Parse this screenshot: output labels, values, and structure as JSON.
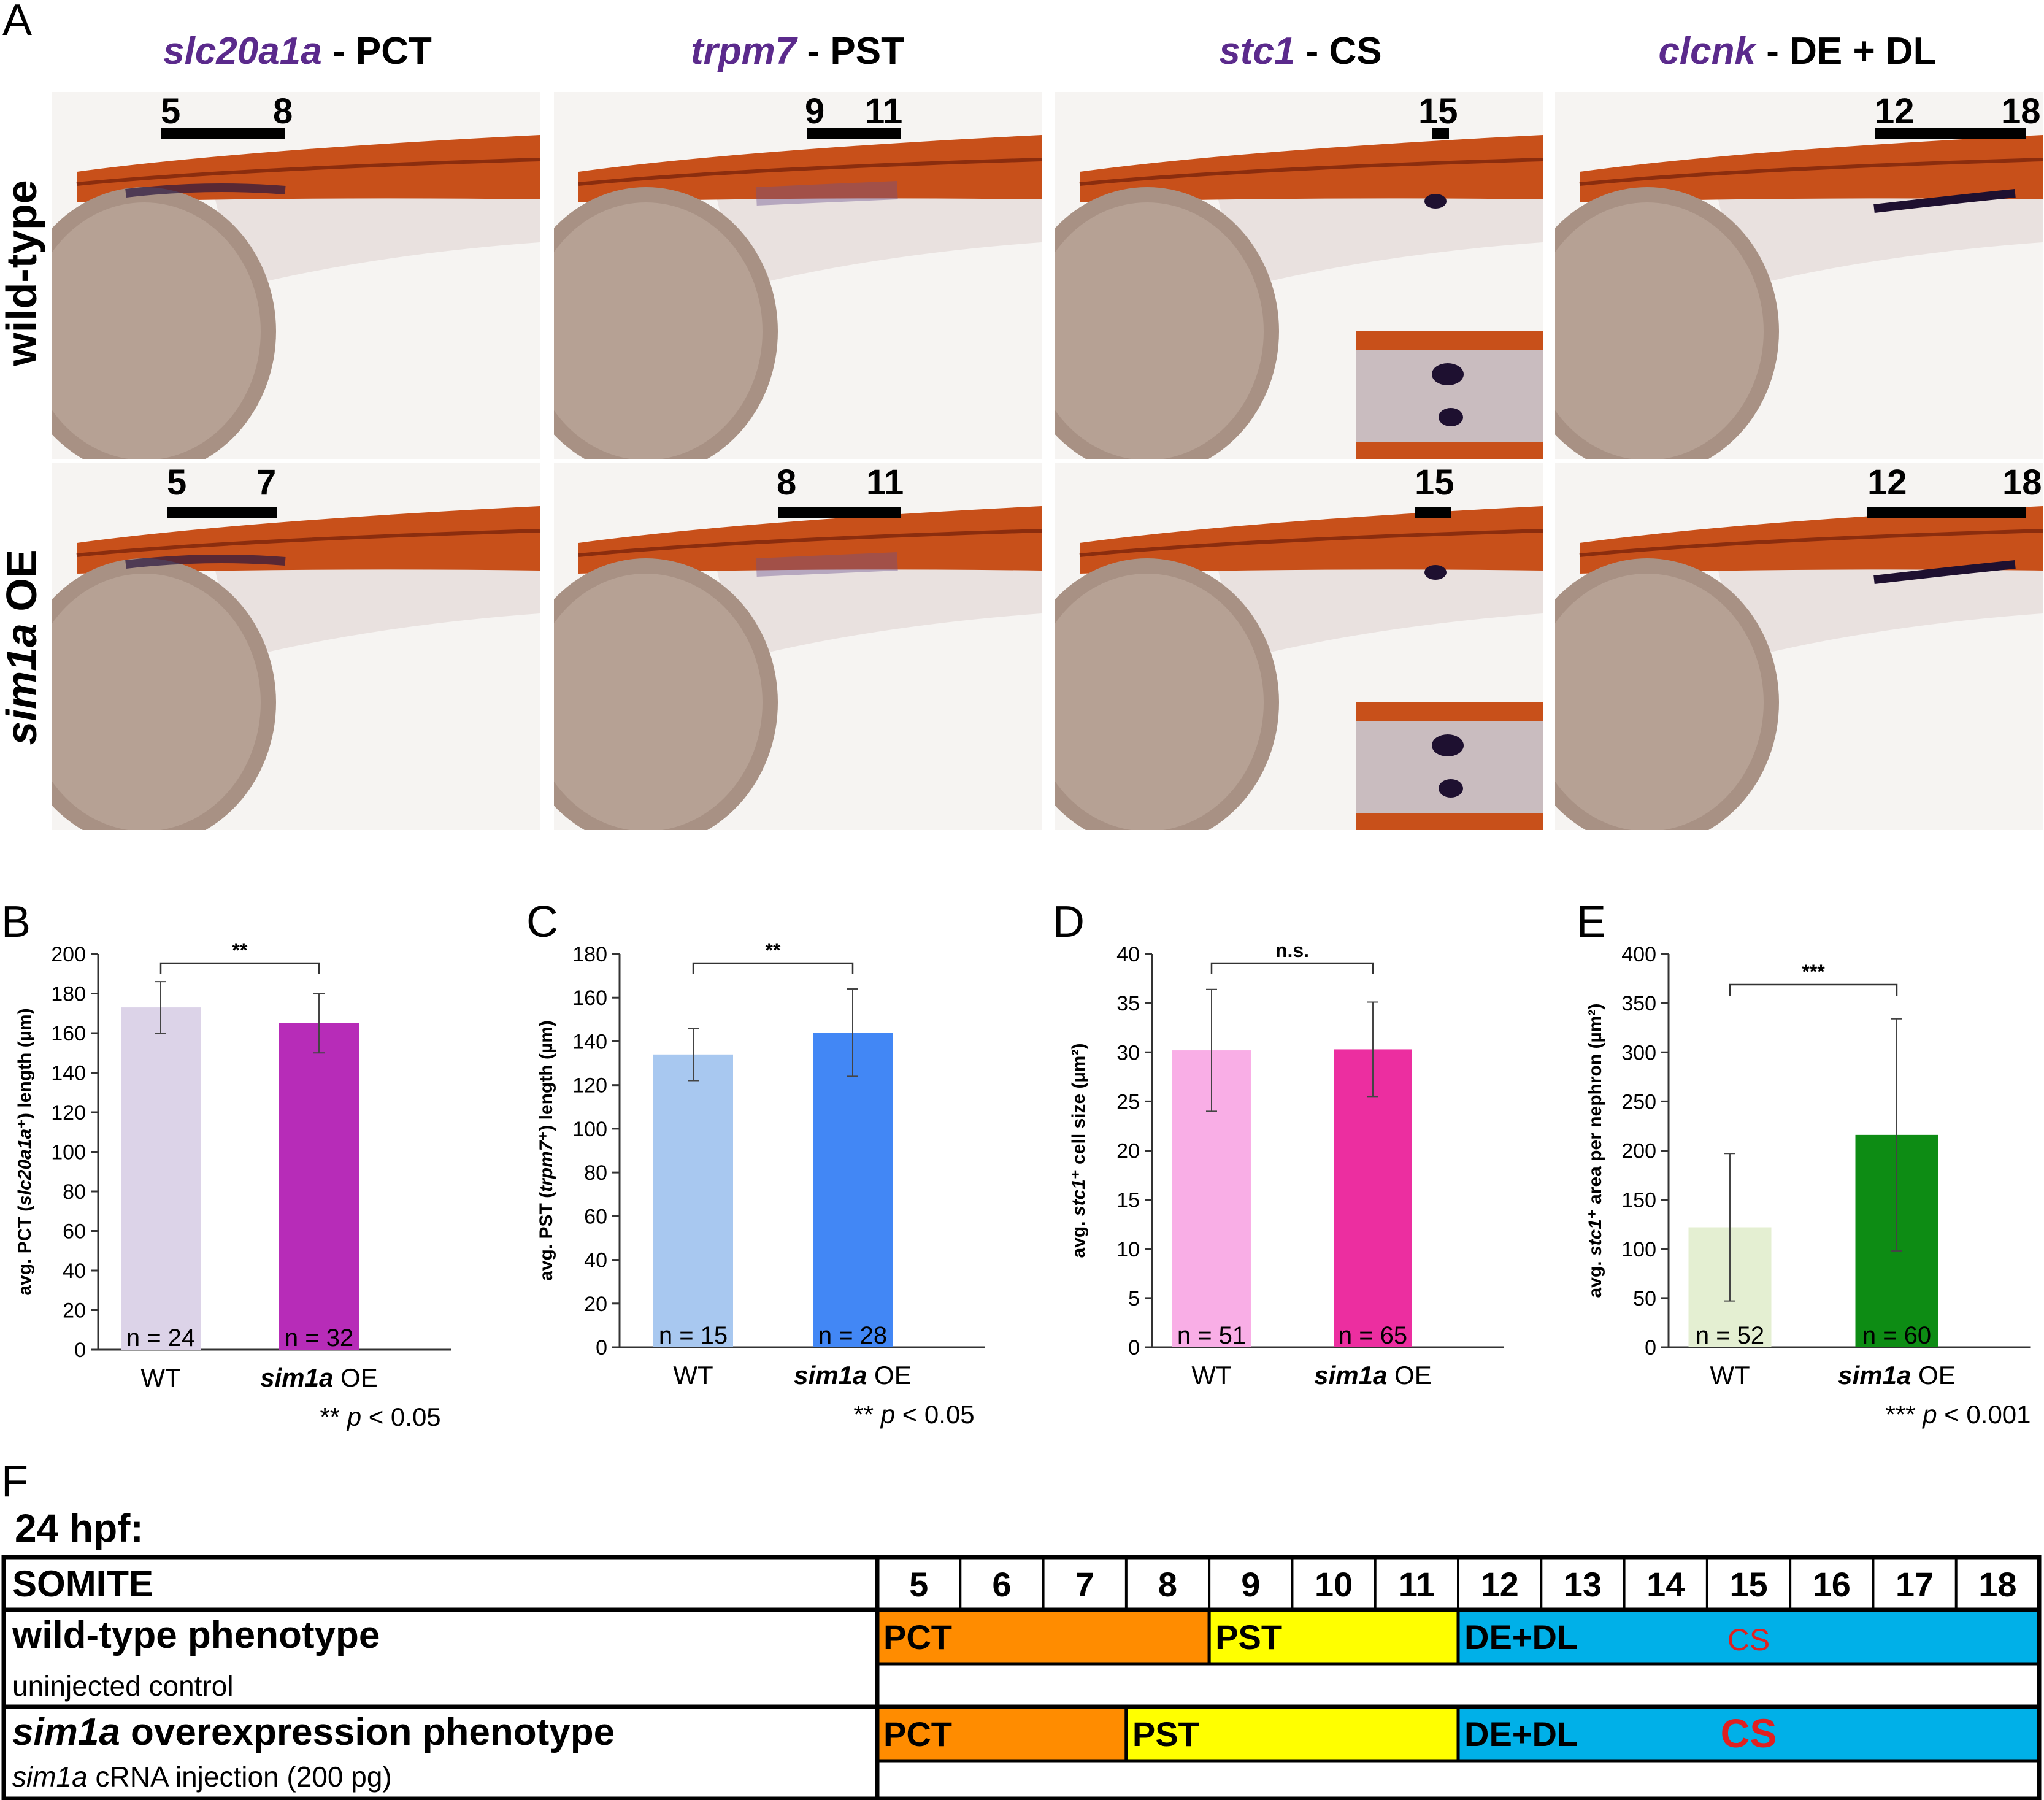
{
  "panel_letters": {
    "A": "A",
    "B": "B",
    "C": "C",
    "D": "D",
    "E": "E",
    "F": "F"
  },
  "panel_a": {
    "columns": [
      {
        "gene": "slc20a1a",
        "suffix": " - PCT"
      },
      {
        "gene": "trpm7",
        "suffix": " - PST"
      },
      {
        "gene": "stc1",
        "suffix": " - CS"
      },
      {
        "gene": "clcnk",
        "suffix": " - DE + DL"
      }
    ],
    "row_labels": {
      "wt": "wild-type",
      "oe_gene": "sim1a",
      "oe_suffix": " OE"
    },
    "somite_marks": {
      "wt": [
        [
          "5",
          "8"
        ],
        [
          "9",
          "11"
        ],
        [
          "15"
        ],
        [
          "12",
          "18"
        ]
      ],
      "oe": [
        [
          "5",
          "7"
        ],
        [
          "8",
          "11"
        ],
        [
          "15"
        ],
        [
          "12",
          "18"
        ]
      ]
    }
  },
  "chart_data": [
    {
      "panel": "B",
      "type": "bar",
      "ylabel_pre": "avg. PCT (",
      "ylabel_gene": "slc20a1a",
      "ylabel_post": "⁺) length (µm)",
      "ylim": [
        0,
        200
      ],
      "yticks": [
        0,
        20,
        40,
        60,
        80,
        100,
        120,
        140,
        160,
        180,
        200
      ],
      "categories": [
        "WT",
        "sim1a OE"
      ],
      "values": [
        173,
        165
      ],
      "errors": [
        13,
        15
      ],
      "n_labels": [
        "n = 24",
        "n = 32"
      ],
      "colors": [
        "#dcd3e8",
        "#b72cb8"
      ],
      "significance": "**",
      "pvalue_stars": "**",
      "pvalue_text": "p < 0.05"
    },
    {
      "panel": "C",
      "type": "bar",
      "ylabel_pre": "avg. PST (",
      "ylabel_gene": "trpm7",
      "ylabel_post": "⁺) length (µm)",
      "ylim": [
        0,
        180
      ],
      "yticks": [
        0,
        20,
        40,
        60,
        80,
        100,
        120,
        140,
        160,
        180
      ],
      "categories": [
        "WT",
        "sim1a OE"
      ],
      "values": [
        134,
        144
      ],
      "errors": [
        12,
        20
      ],
      "n_labels": [
        "n = 15",
        "n = 28"
      ],
      "colors": [
        "#a8c8f0",
        "#4287f5"
      ],
      "significance": "**",
      "pvalue_stars": "**",
      "pvalue_text": "p < 0.05"
    },
    {
      "panel": "D",
      "type": "bar",
      "ylabel_pre": "avg. ",
      "ylabel_gene": "stc1",
      "ylabel_post": "⁺ cell size (µm²)",
      "ylim": [
        0,
        40
      ],
      "yticks": [
        0,
        5,
        10,
        15,
        20,
        25,
        30,
        35,
        40
      ],
      "categories": [
        "WT",
        "sim1a OE"
      ],
      "values": [
        30.2,
        30.3
      ],
      "errors": [
        6.2,
        4.8
      ],
      "n_labels": [
        "n = 51",
        "n = 65"
      ],
      "colors": [
        "#f9aee6",
        "#ec2ea0"
      ],
      "significance": "n.s.",
      "pvalue_stars": "",
      "pvalue_text": ""
    },
    {
      "panel": "E",
      "type": "bar",
      "ylabel_pre": "avg. ",
      "ylabel_gene": "stc1",
      "ylabel_post": "⁺ area per nephron (µm²)",
      "ylim": [
        0,
        400
      ],
      "yticks": [
        0,
        50,
        100,
        150,
        200,
        250,
        300,
        350,
        400
      ],
      "categories": [
        "WT",
        "sim1a OE"
      ],
      "values": [
        122,
        216
      ],
      "errors": [
        75,
        118
      ],
      "n_labels": [
        "n = 52",
        "n = 60"
      ],
      "colors": [
        "#e4efd2",
        "#0d8c14"
      ],
      "significance": "***",
      "pvalue_stars": "***",
      "pvalue_text": "p < 0.001"
    }
  ],
  "panel_f": {
    "title": "24 hpf:",
    "somite_header": "SOMITE",
    "somites": [
      "5",
      "6",
      "7",
      "8",
      "9",
      "10",
      "11",
      "12",
      "13",
      "14",
      "15",
      "16",
      "17",
      "18"
    ],
    "wt_title": "wild-type phenotype",
    "wt_subtitle": "uninjected control",
    "oe_title_gene": "sim1a",
    "oe_title_rest": " overexpression phenotype",
    "oe_subtitle_gene": "sim1a",
    "oe_subtitle_rest": " cRNA injection (200 pg)",
    "wt_segments": [
      {
        "label": "PCT",
        "start": 5,
        "end": 8,
        "color": "#ff8c00"
      },
      {
        "label": "PST",
        "start": 9,
        "end": 11,
        "color": "#ffff00"
      },
      {
        "label": "DE+DL",
        "start": 12,
        "end": 18,
        "color": "#00b0e8"
      }
    ],
    "oe_segments": [
      {
        "label": "PCT",
        "start": 5,
        "end": 7,
        "color": "#ff8c00"
      },
      {
        "label": "PST",
        "start": 8,
        "end": 11,
        "color": "#ffff00"
      },
      {
        "label": "DE+DL",
        "start": 12,
        "end": 18,
        "color": "#00b0e8"
      }
    ],
    "cs_label": "CS",
    "cs_color": "#e02020"
  }
}
